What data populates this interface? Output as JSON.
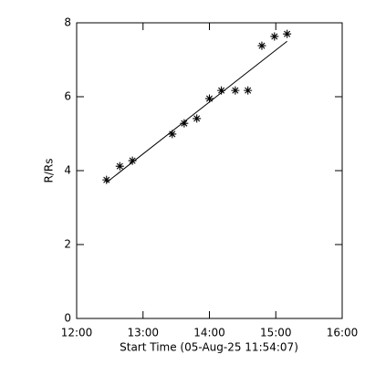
{
  "chart_data": {
    "type": "scatter",
    "xlabel": "Start Time (05-Aug-25 11:54:07)",
    "ylabel": "R/Rs",
    "series": [
      {
        "x": [
          12.45,
          12.65,
          12.84,
          13.44,
          13.62,
          13.81,
          14.0,
          14.18,
          14.39,
          14.58,
          14.79,
          14.98,
          15.17
        ],
        "values": [
          3.75,
          4.12,
          4.27,
          4.99,
          5.28,
          5.41,
          5.95,
          6.17,
          6.17,
          6.17,
          7.38,
          7.63,
          7.7
        ],
        "color": "#000000",
        "marker": "asterisk"
      },
      {
        "x": [
          12.45,
          15.17
        ],
        "values": [
          3.68,
          7.5
        ],
        "color": "#000000",
        "marker": "line"
      }
    ],
    "xlim": [
      12,
      16
    ],
    "xticks": [
      {
        "value": 12,
        "label": "12:00"
      },
      {
        "value": 13,
        "label": "13:00"
      },
      {
        "value": 14,
        "label": "14:00"
      },
      {
        "value": 15,
        "label": "15:00"
      },
      {
        "value": 16,
        "label": "16:00"
      }
    ],
    "ylim": [
      0,
      8
    ],
    "yticks": [
      0,
      2,
      4,
      6,
      8
    ]
  }
}
